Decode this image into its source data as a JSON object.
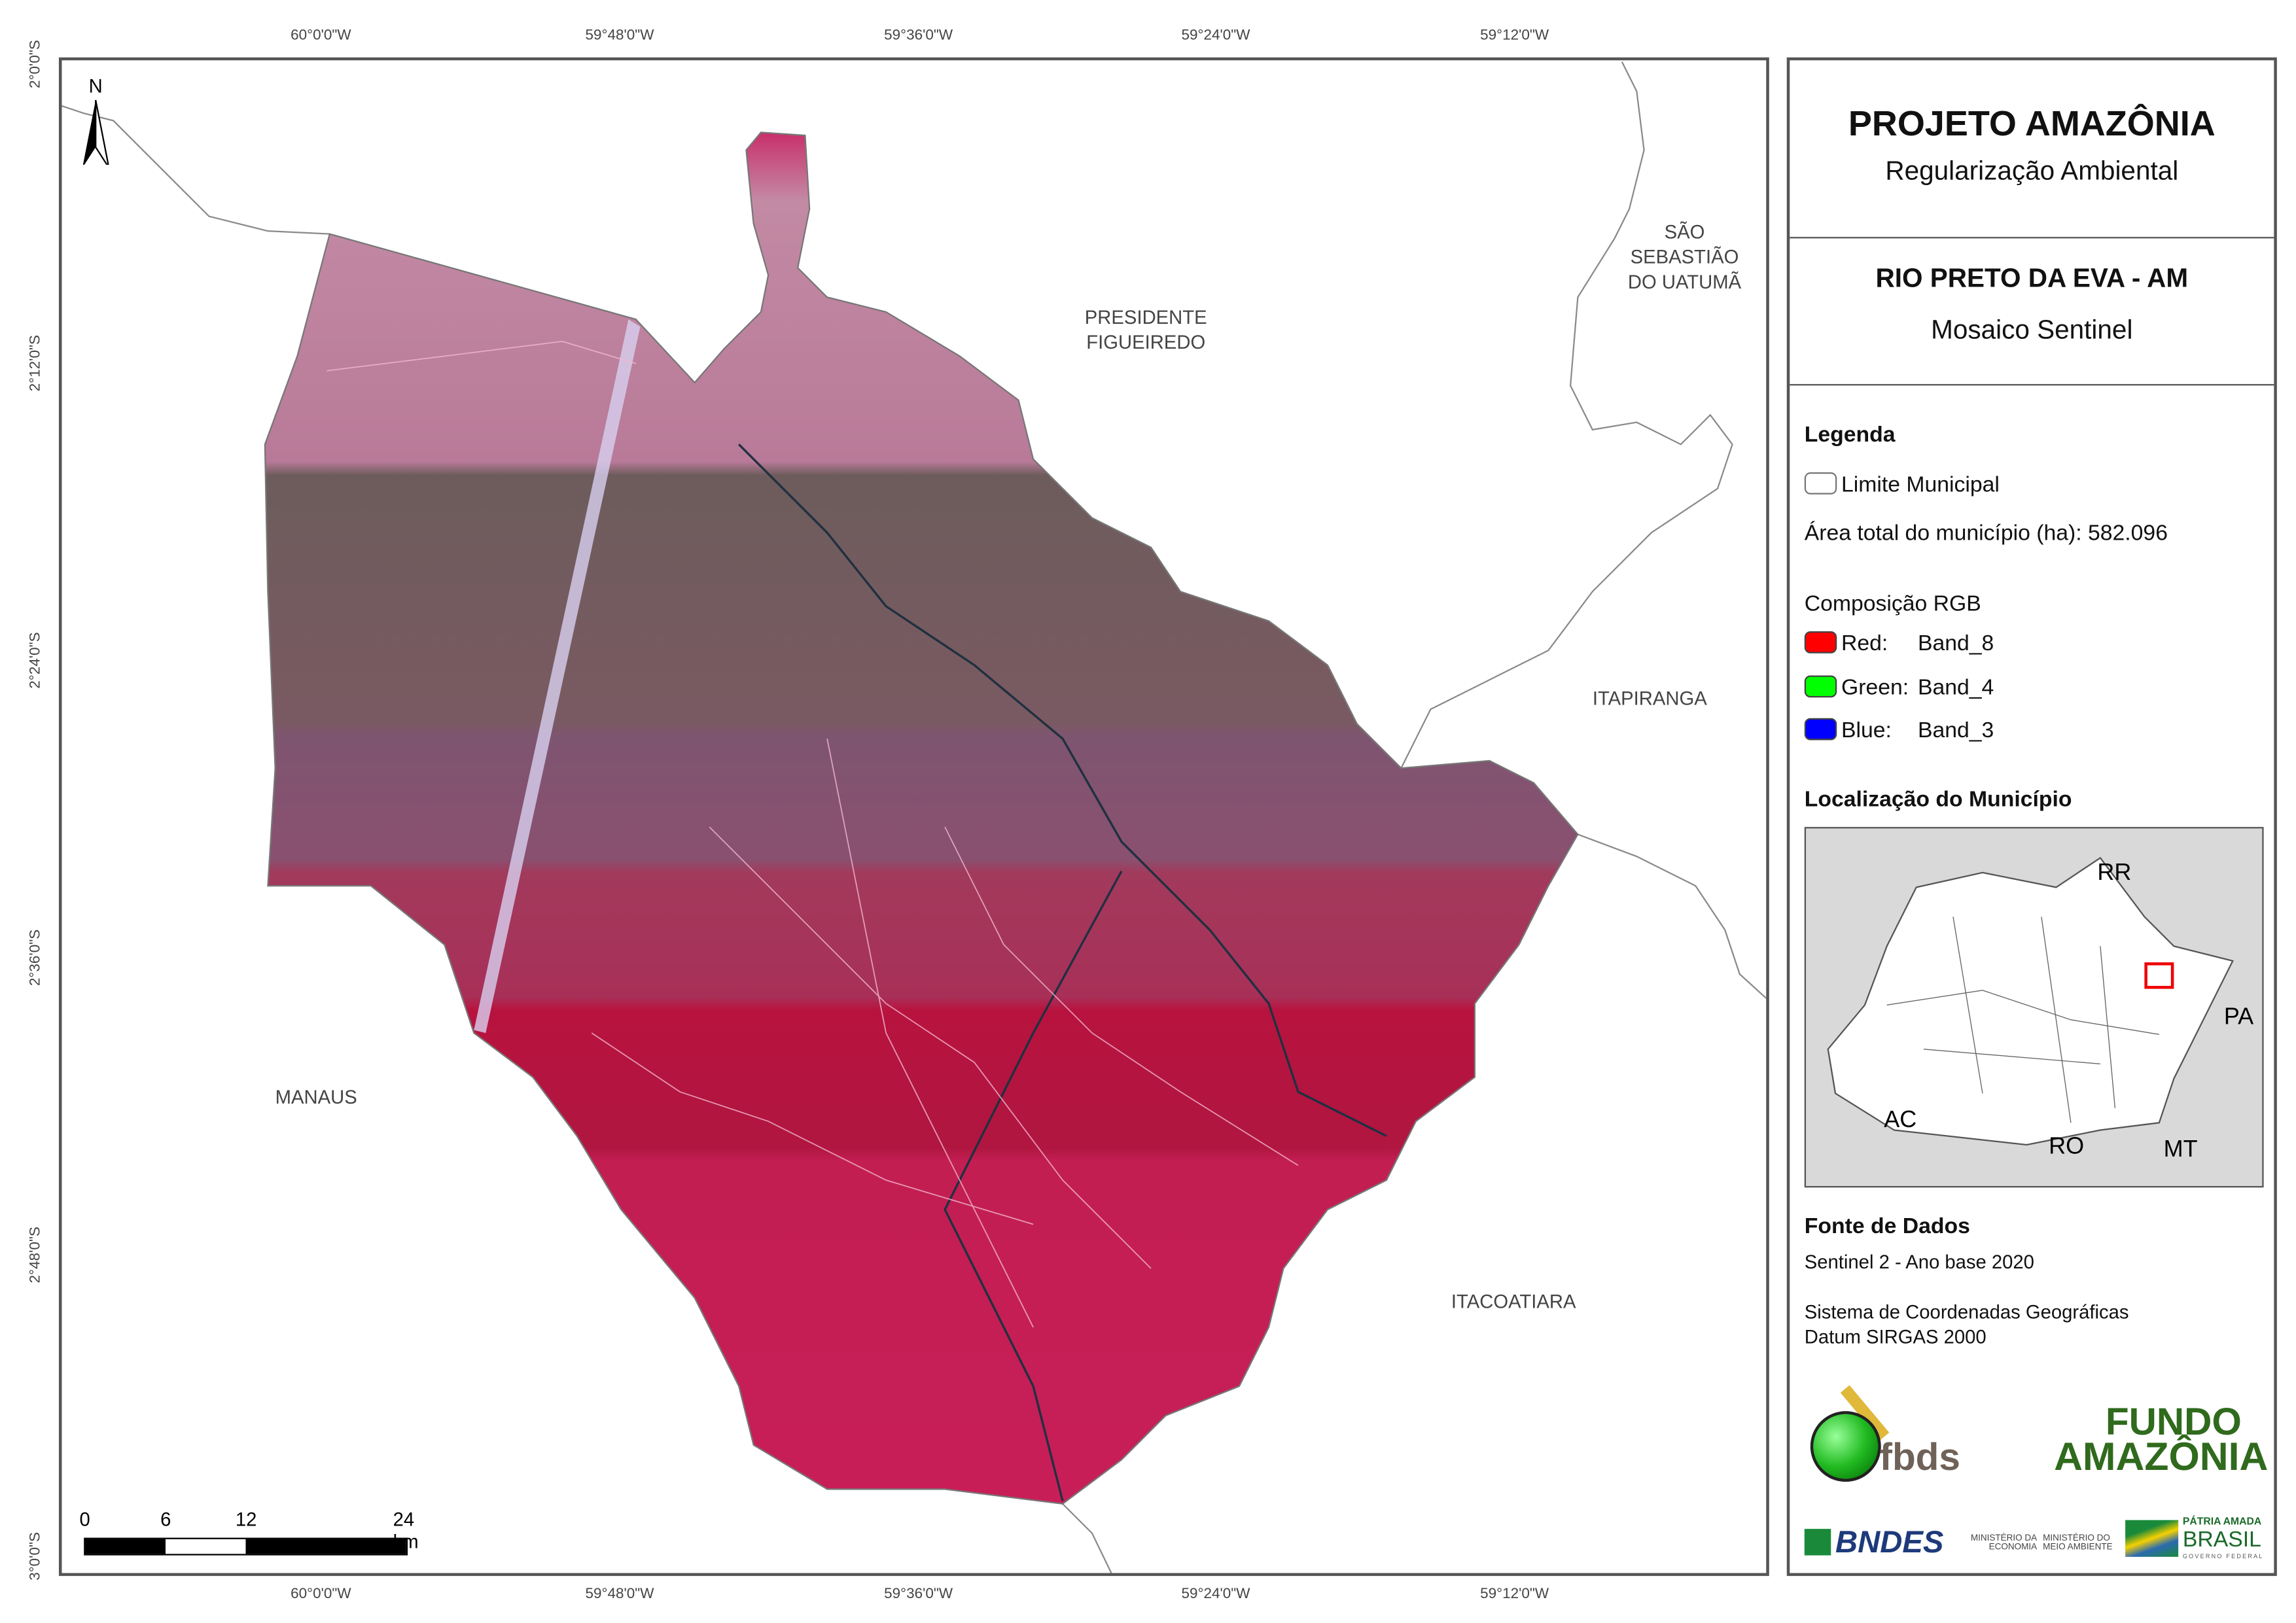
{
  "graticule": {
    "top": [
      "60°0'0\"W",
      "59°48'0\"W",
      "59°36'0\"W",
      "59°24'0\"W",
      "59°12'0\"W"
    ],
    "bottom": [
      "60°0'0\"W",
      "59°48'0\"W",
      "59°36'0\"W",
      "59°24'0\"W",
      "59°12'0\"W"
    ],
    "left": [
      "2°0'0\"S",
      "2°12'0\"S",
      "2°24'0\"S",
      "2°36'0\"S",
      "2°48'0\"S",
      "3°0'0\"S"
    ]
  },
  "map": {
    "north_label": "N",
    "places": {
      "presidente_figueiredo": "PRESIDENTE\nFIGUEIREDO",
      "sao_sebastiao": "SÃO\nSEBASTIÃO\nDO UATUMÃ",
      "itapiranga": "ITAPIRANGA",
      "manaus": "MANAUS",
      "itacoatiara": "ITACOATIARA"
    },
    "scale_bar": {
      "labels": [
        "0",
        "6",
        "12",
        "24 km"
      ]
    },
    "colors": {
      "vegetation": "#c01a4c",
      "boundary": "#808080"
    }
  },
  "panel": {
    "title": "PROJETO AMAZÔNIA",
    "subtitle": "Regularização Ambiental",
    "municipality": "RIO PRETO DA EVA - AM",
    "product": "Mosaico Sentinel",
    "legend": {
      "heading": "Legenda",
      "limit_label": "Limite Municipal",
      "area_label": "Área total do município (ha): 582.096",
      "rgb_heading": "Composição RGB",
      "bands": [
        {
          "channel": "Red:",
          "band": "Band_8",
          "color": "#ff0000"
        },
        {
          "channel": "Green:",
          "band": "Band_4",
          "color": "#00ff00"
        },
        {
          "channel": "Blue:",
          "band": "Band_3",
          "color": "#0000ff"
        }
      ]
    },
    "location": {
      "heading": "Localização do Município",
      "states": [
        "RR",
        "PA",
        "AC",
        "RO",
        "MT"
      ]
    },
    "sources": {
      "heading": "Fonte de Dados",
      "line1": "Sentinel 2 - Ano base 2020",
      "line2": "Sistema de Coordenadas Geográficas",
      "line3": "Datum SIRGAS 2000"
    },
    "logos": {
      "fbds": "fbds",
      "fundo1": "FUNDO",
      "fundo2": "AMAZÔNIA",
      "bndes": "BNDES",
      "min_econ": "MINISTÉRIO DA ECONOMIA",
      "min_amb": "MINISTÉRIO DO MEIO AMBIENTE",
      "patria1": "PÁTRIA AMADA",
      "patria2": "BRASIL",
      "patria3": "GOVERNO FEDERAL"
    }
  }
}
